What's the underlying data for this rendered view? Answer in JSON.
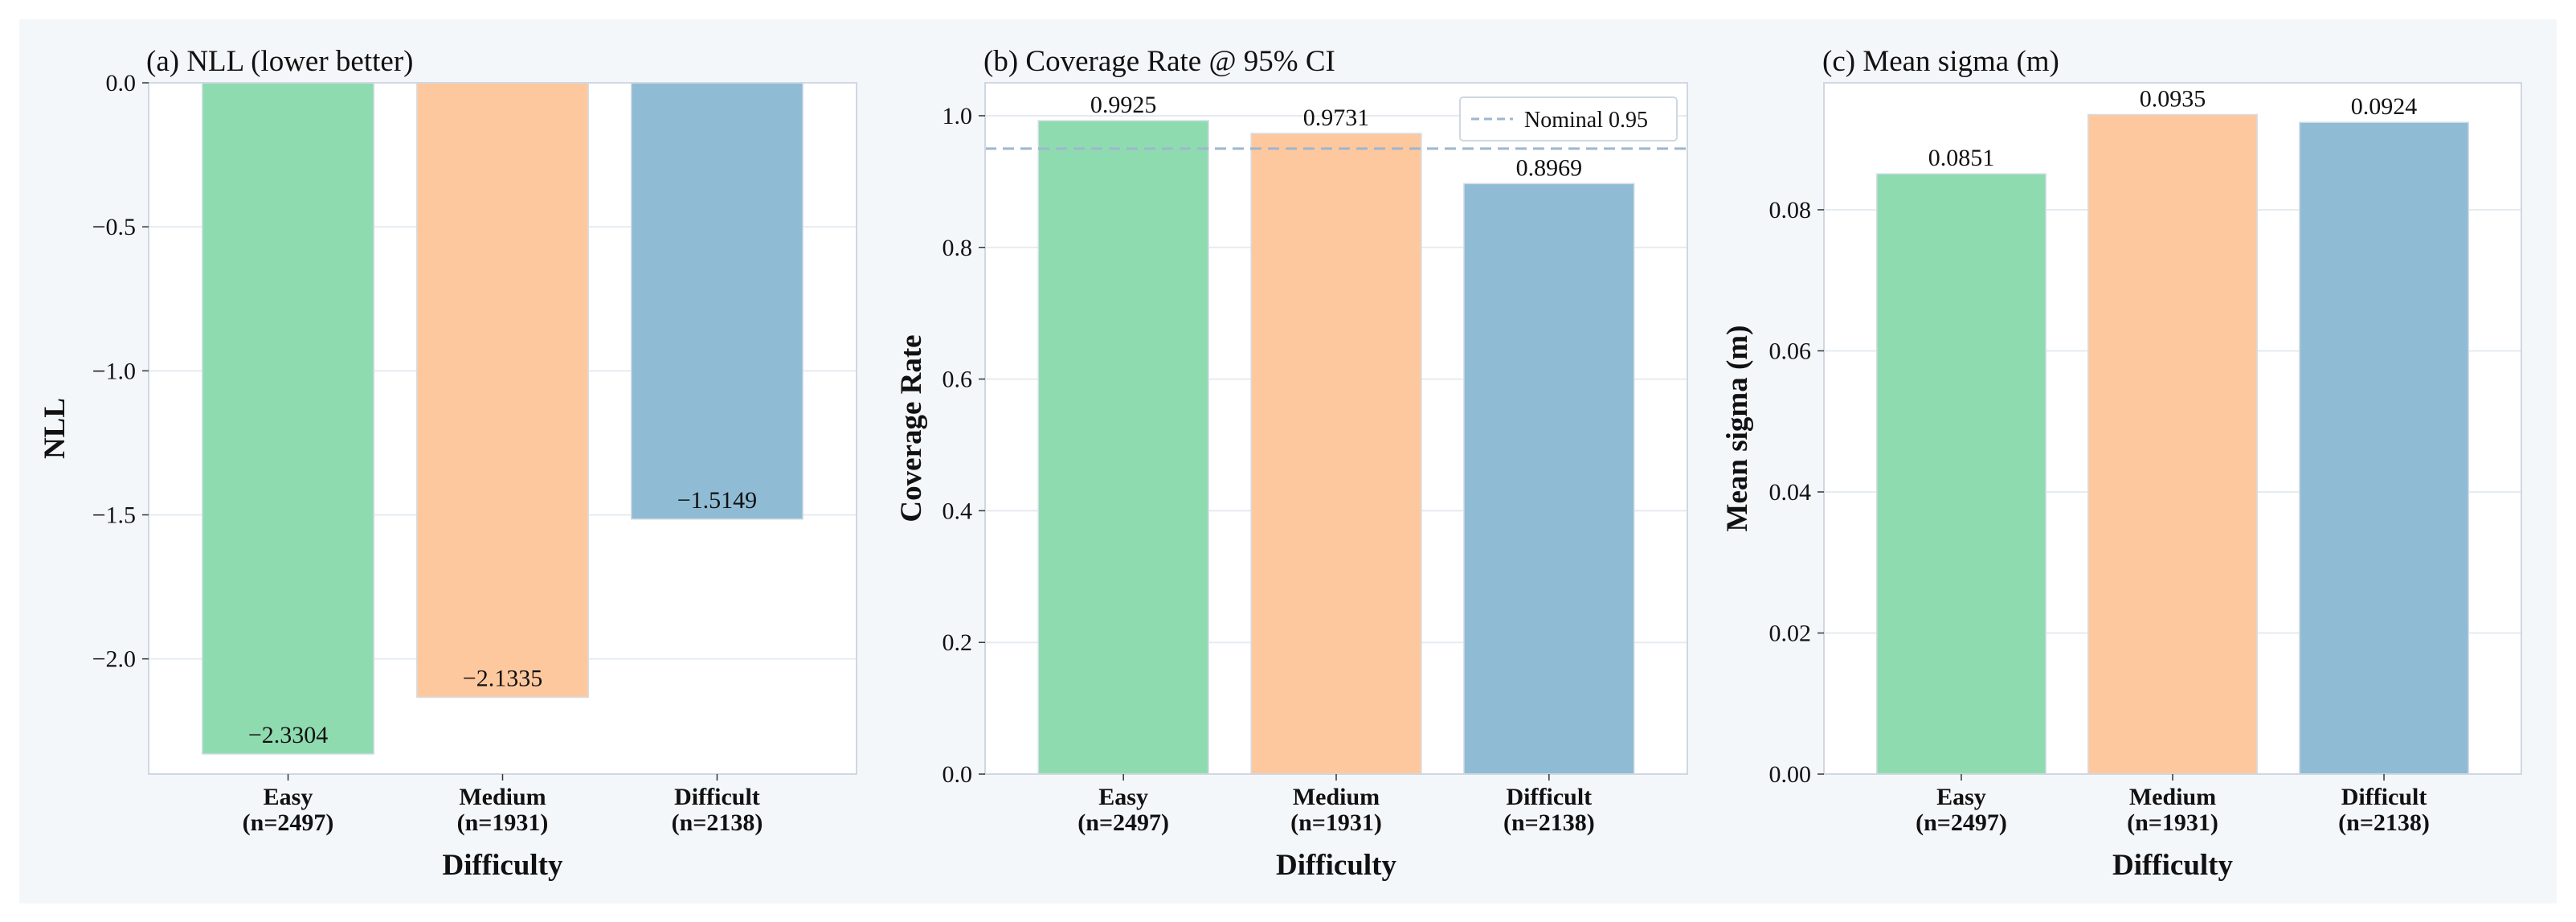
{
  "figure": {
    "background": "#f4f7fa",
    "colors": {
      "Easy": "#8fdbb0",
      "Medium": "#fec89f",
      "Difficult": "#8fbcd4",
      "grid": "#e6ebf0",
      "spine": "#cfd8e2",
      "reference_line": "#9fb6cf"
    }
  },
  "chart_data": [
    {
      "type": "bar",
      "title": "(a) NLL (lower better)",
      "xlabel": "Difficulty",
      "ylabel": "NLL",
      "categories": [
        "Easy\n(n=2497)",
        "Medium\n(n=1931)",
        "Difficult\n(n=2138)"
      ],
      "values": [
        -2.3304,
        -2.1335,
        -1.5149
      ],
      "value_labels": [
        "−2.3304",
        "−2.1335",
        "−1.5149"
      ],
      "label_position": "inside",
      "ylim": [
        -2.4,
        0.0
      ],
      "yticks": [
        0.0,
        -0.5,
        -1.0,
        -1.5,
        -2.0
      ],
      "ytick_labels": [
        "0.0",
        "−0.5",
        "−1.0",
        "−1.5",
        "−2.0"
      ],
      "grid": true
    },
    {
      "type": "bar",
      "title": "(b) Coverage Rate @ 95% CI",
      "xlabel": "Difficulty",
      "ylabel": "Coverage Rate",
      "categories": [
        "Easy\n(n=2497)",
        "Medium\n(n=1931)",
        "Difficult\n(n=2138)"
      ],
      "values": [
        0.9925,
        0.9731,
        0.8969
      ],
      "value_labels": [
        "0.9925",
        "0.9731",
        "0.8969"
      ],
      "label_position": "above",
      "ylim": [
        0.0,
        1.05
      ],
      "yticks": [
        0.0,
        0.2,
        0.4,
        0.6,
        0.8,
        1.0
      ],
      "ytick_labels": [
        "0.0",
        "0.2",
        "0.4",
        "0.6",
        "0.8",
        "1.0"
      ],
      "reference_line": {
        "value": 0.95,
        "label": "Nominal 0.95",
        "style": "dashed"
      },
      "legend_position": "top-right",
      "grid": true
    },
    {
      "type": "bar",
      "title": "(c) Mean sigma (m)",
      "xlabel": "Difficulty",
      "ylabel": "Mean sigma (m)",
      "categories": [
        "Easy\n(n=2497)",
        "Medium\n(n=1931)",
        "Difficult\n(n=2138)"
      ],
      "values": [
        0.0851,
        0.0935,
        0.0924
      ],
      "value_labels": [
        "0.0851",
        "0.0935",
        "0.0924"
      ],
      "label_position": "above",
      "ylim": [
        0.0,
        0.098
      ],
      "yticks": [
        0.0,
        0.02,
        0.04,
        0.06,
        0.08
      ],
      "ytick_labels": [
        "0.00",
        "0.02",
        "0.04",
        "0.06",
        "0.08"
      ],
      "grid": true
    }
  ]
}
